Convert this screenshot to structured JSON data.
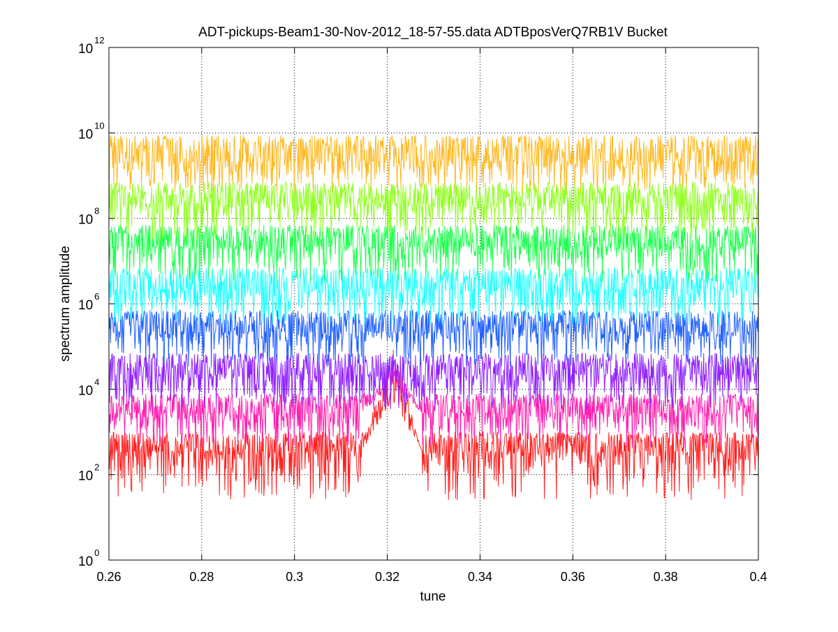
{
  "chart_data": {
    "type": "line",
    "title": "ADT-pickups-Beam1-30-Nov-2012_18-57-55.data   ADTBposVerQ7RB1V Bucket",
    "xlabel": "tune",
    "ylabel": "spectrum amplitude",
    "xlim": [
      0.26,
      0.4
    ],
    "ylim": [
      1,
      1000000000000
    ],
    "yscale": "log",
    "grid": true,
    "x_ticks": [
      {
        "value": 0.26,
        "label": "0.26"
      },
      {
        "value": 0.28,
        "label": "0.28"
      },
      {
        "value": 0.3,
        "label": "0.3"
      },
      {
        "value": 0.32,
        "label": "0.32"
      },
      {
        "value": 0.34,
        "label": "0.34"
      },
      {
        "value": 0.36,
        "label": "0.36"
      },
      {
        "value": 0.38,
        "label": "0.38"
      },
      {
        "value": 0.4,
        "label": "0.4"
      }
    ],
    "y_ticks": [
      {
        "value": 1,
        "base": "10",
        "exp": "0"
      },
      {
        "value": 100,
        "base": "10",
        "exp": "2"
      },
      {
        "value": 10000,
        "base": "10",
        "exp": "4"
      },
      {
        "value": 1000000,
        "base": "10",
        "exp": "6"
      },
      {
        "value": 100000000,
        "base": "10",
        "exp": "8"
      },
      {
        "value": 10000000000,
        "base": "10",
        "exp": "10"
      },
      {
        "value": 1000000000000,
        "base": "10",
        "exp": "12"
      }
    ],
    "series": [
      {
        "color": "#ff2020",
        "baseline_log10": 2.55,
        "noise_low_log10": 1.4,
        "noise_high_log10": 3.0,
        "peak_tune": 0.321,
        "peak_log10": 5.1
      },
      {
        "color": "#ff20b0",
        "baseline_log10": 3.45,
        "noise_low_log10": 2.6,
        "noise_high_log10": 3.9,
        "peak_tune": 0.321,
        "peak_log10": 4.7
      },
      {
        "color": "#9020ff",
        "baseline_log10": 4.35,
        "noise_low_log10": 3.5,
        "noise_high_log10": 4.85
      },
      {
        "color": "#2060ff",
        "baseline_log10": 5.35,
        "noise_low_log10": 4.5,
        "noise_high_log10": 5.85
      },
      {
        "color": "#20ffff",
        "baseline_log10": 6.35,
        "noise_low_log10": 5.5,
        "noise_high_log10": 6.85
      },
      {
        "color": "#20ff50",
        "baseline_log10": 7.35,
        "noise_low_log10": 6.5,
        "noise_high_log10": 7.85
      },
      {
        "color": "#90ff20",
        "baseline_log10": 8.35,
        "noise_low_log10": 7.5,
        "noise_high_log10": 8.85
      },
      {
        "color": "#ffb820",
        "baseline_log10": 9.35,
        "noise_low_log10": 8.6,
        "noise_high_log10": 9.95
      }
    ]
  }
}
